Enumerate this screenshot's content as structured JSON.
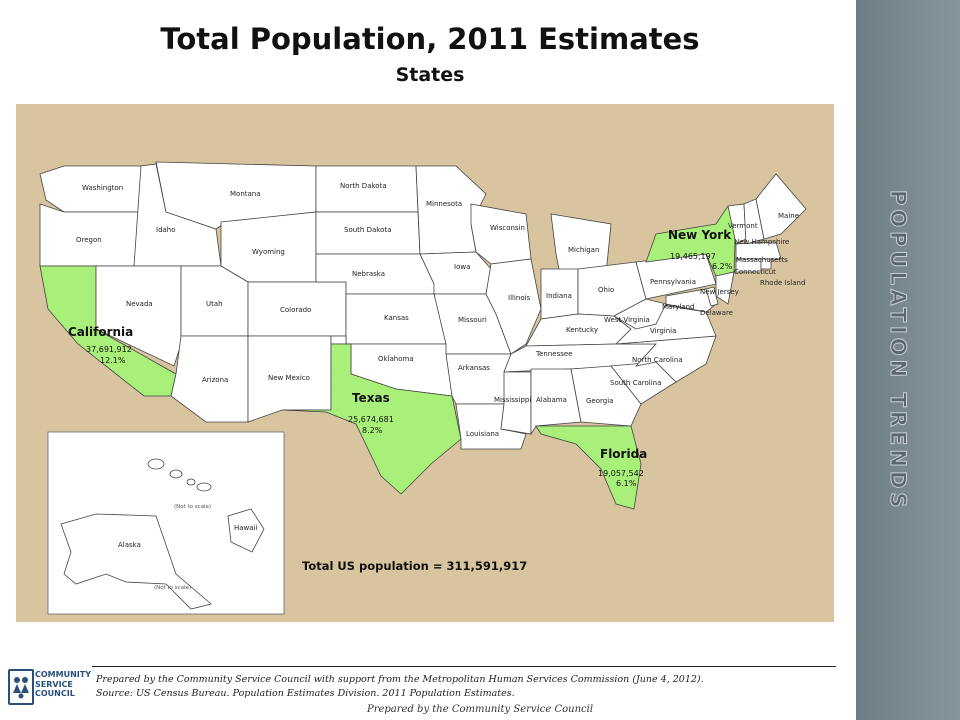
{
  "slide": {
    "title": "Total Population, 2011 Estimates",
    "subtitle": "States",
    "sidebar_text": "POPULATION TRENDS"
  },
  "map": {
    "background_color": "#d8c49e",
    "state_fill": "#ffffff",
    "highlight_fill": "#a8f07a",
    "border_color": "#444444",
    "total_label": "Total US population = 311,591,917",
    "inset_note_hawaii": "(Not to scale)",
    "inset_note_alaska": "(Not to scale)",
    "highlighted": [
      {
        "name": "California",
        "population": "37,691,912",
        "share": "12.1%"
      },
      {
        "name": "Texas",
        "population": "25,674,681",
        "share": "8.2%"
      },
      {
        "name": "New York",
        "population": "19,465,197",
        "share": "6.2%"
      },
      {
        "name": "Florida",
        "population": "19,057,542",
        "share": "6.1%"
      }
    ],
    "state_labels": [
      "Washington",
      "Oregon",
      "Idaho",
      "Montana",
      "Wyoming",
      "Nevada",
      "Utah",
      "Colorado",
      "Arizona",
      "New Mexico",
      "North Dakota",
      "South Dakota",
      "Nebraska",
      "Kansas",
      "Oklahoma",
      "Minnesota",
      "Iowa",
      "Missouri",
      "Arkansas",
      "Louisiana",
      "Wisconsin",
      "Illinois",
      "Michigan",
      "Indiana",
      "Ohio",
      "Kentucky",
      "Tennessee",
      "Mississippi",
      "Alabama",
      "Georgia",
      "South Carolina",
      "North Carolina",
      "Virginia",
      "West Virginia",
      "Pennsylvania",
      "New Jersey",
      "Maryland",
      "Delaware",
      "Vermont",
      "New Hampshire",
      "Maine",
      "Massachusetts",
      "Connecticut",
      "Rhode Island",
      "Alaska",
      "Hawaii"
    ]
  },
  "footer": {
    "logo_line1": "COMMUNITY",
    "logo_line2": "SERVICE",
    "logo_line3": "COUNCIL",
    "credit_line1": "Prepared by the Community Service Council with support from the Metropolitan Human Services Commission (June 4, 2012).",
    "credit_line2": "Source:  US Census Bureau. Population Estimates Division. 2011 Population Estimates.",
    "prepared_by": "Prepared by the Community Service Council"
  }
}
